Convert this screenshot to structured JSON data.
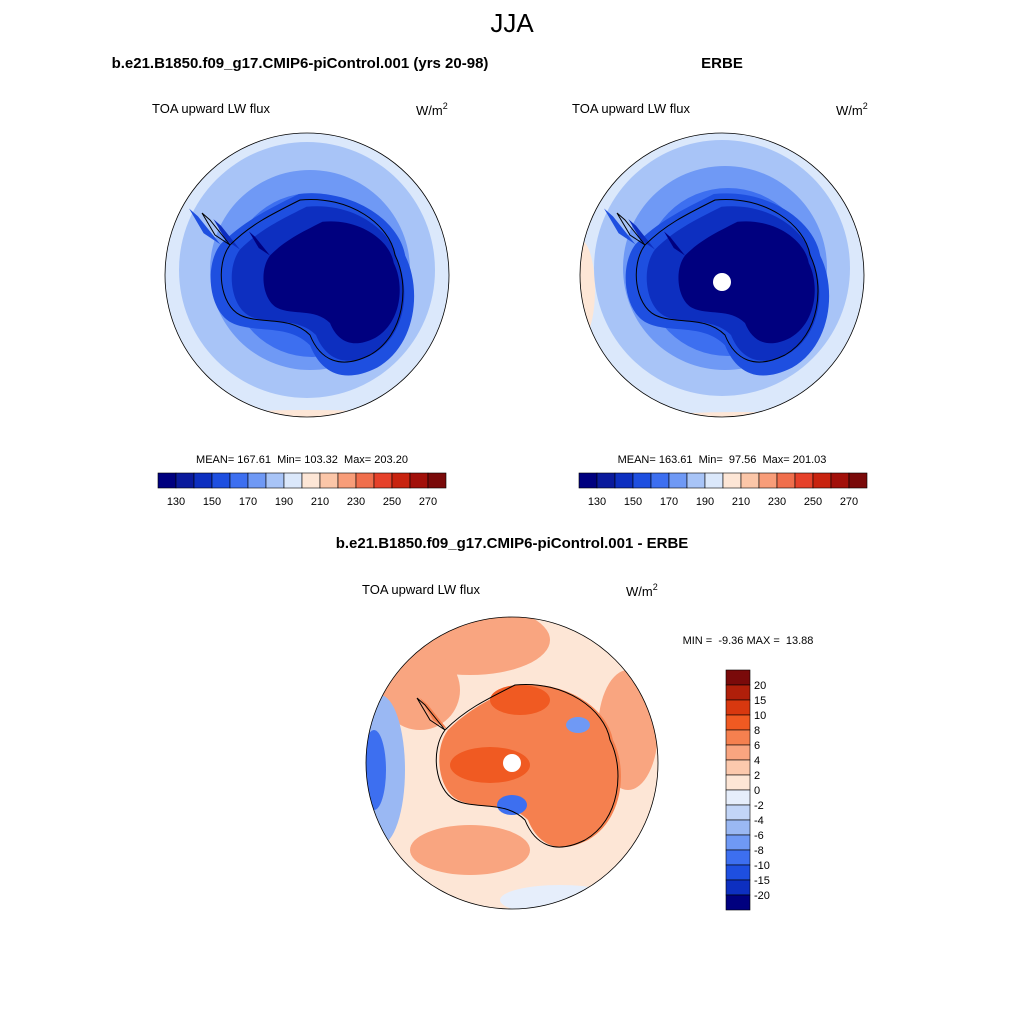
{
  "title": "JJA",
  "panels": [
    {
      "title": "b.e21.B1850.f09_g17.CMIP6-piControl.001 (yrs 20-98)",
      "variable": "TOA upward LW flux",
      "units": "W/m",
      "units_exponent": "2",
      "stats": "MEAN= 167.61  Min= 103.32  Max= 203.20"
    },
    {
      "title": "ERBE",
      "variable": "TOA upward LW flux",
      "units": "W/m",
      "units_exponent": "2",
      "stats": "MEAN= 163.61  Min=  97.56  Max= 201.03"
    },
    {
      "title": "b.e21.B1850.f09_g17.CMIP6-piControl.001 - ERBE",
      "variable": "TOA upward LW flux",
      "units": "W/m",
      "units_exponent": "2",
      "stats": "MIN =  -9.36 MAX =  13.88"
    }
  ],
  "colorbars": [
    {
      "labels": [
        130,
        150,
        170,
        190,
        210,
        230,
        250,
        270
      ],
      "colors": [
        "#00007f",
        "#0a1a9c",
        "#0d2fc0",
        "#1e4fe0",
        "#3d6ff0",
        "#6f99f5",
        "#a8c4f7",
        "#dbe8fb",
        "#fde6d6",
        "#fbc6a8",
        "#f89d79",
        "#f06e4c",
        "#e6412a",
        "#c8230f",
        "#a2100a",
        "#7a0a0a"
      ]
    },
    {
      "labels": [
        20,
        15,
        10,
        8,
        6,
        4,
        2,
        0,
        -2,
        -4,
        -6,
        -8,
        -10,
        -15,
        -20
      ],
      "colors": [
        "#7a0a0a",
        "#b01f0a",
        "#d8380f",
        "#f05a22",
        "#f5804f",
        "#f9a580",
        "#fcc9ad",
        "#fde6d6",
        "#e6eefb",
        "#c2d5f7",
        "#9ab8f3",
        "#6f99f5",
        "#3d6ff0",
        "#1e4fe0",
        "#0d2fc0",
        "#00007f"
      ]
    }
  ]
}
